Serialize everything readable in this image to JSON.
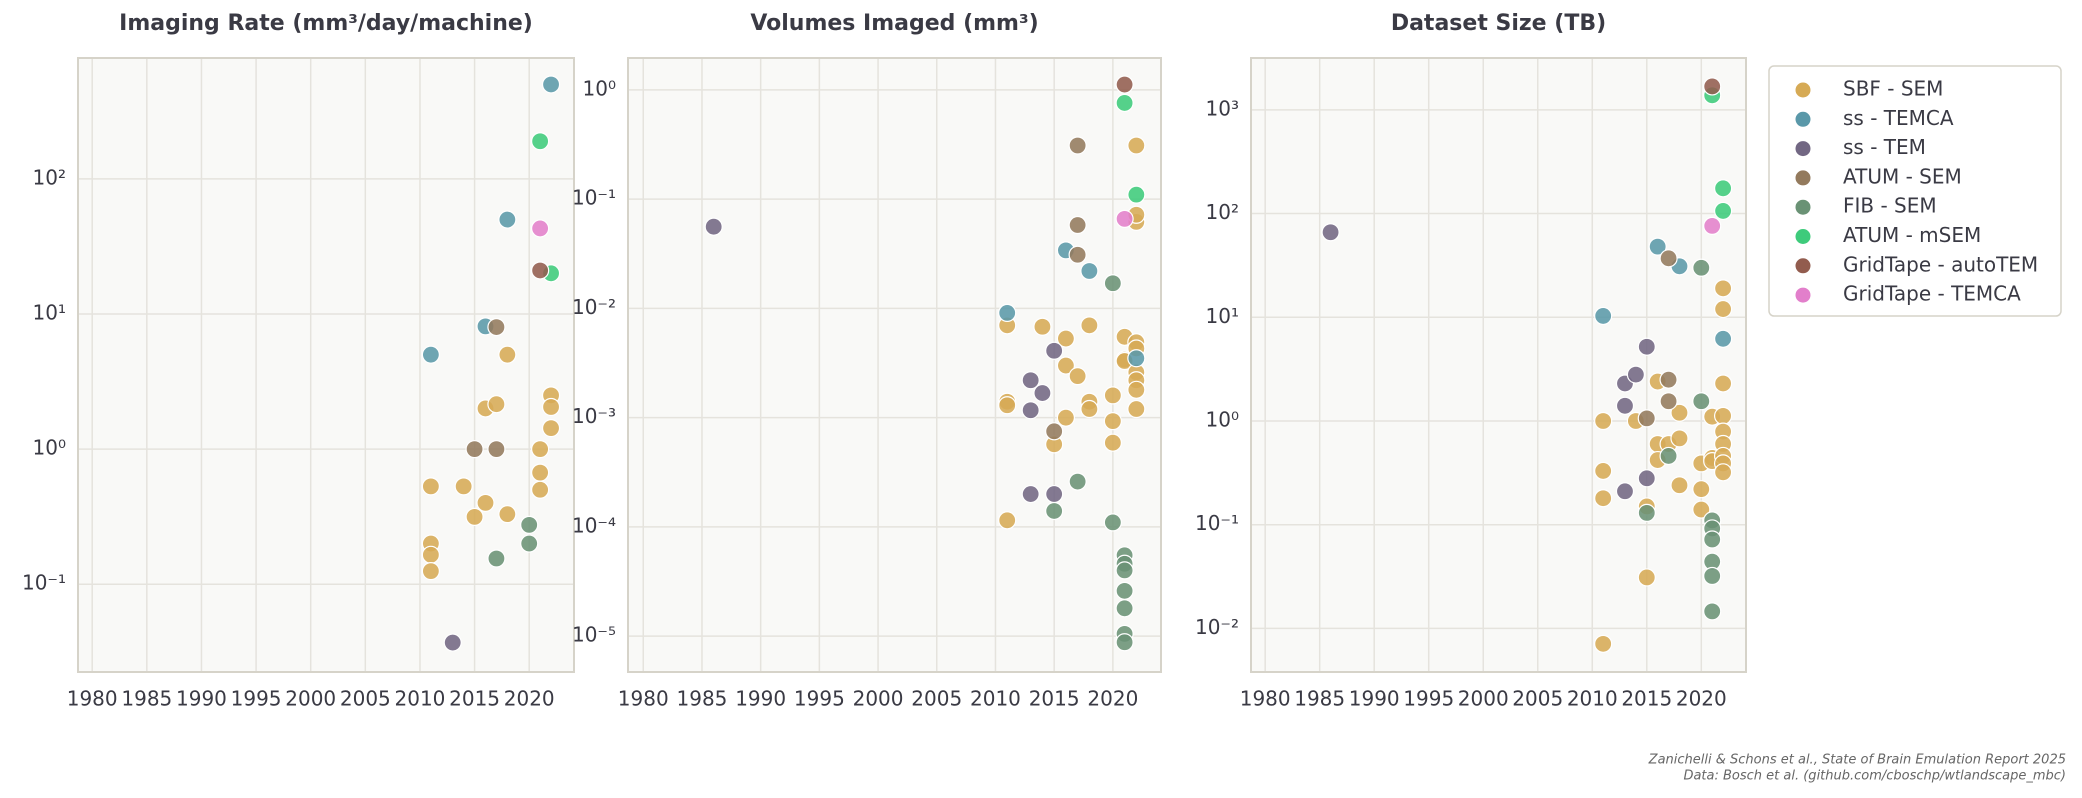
{
  "legend": {
    "series": [
      {
        "name": "SBF - SEM",
        "color": "#d6aa55"
      },
      {
        "name": "ss - TEMCA",
        "color": "#5a98a9"
      },
      {
        "name": "ss - TEM",
        "color": "#726783"
      },
      {
        "name": "ATUM - SEM",
        "color": "#937a5d"
      },
      {
        "name": "FIB - SEM",
        "color": "#6a9275"
      },
      {
        "name": "ATUM - mSEM",
        "color": "#3ecb7b"
      },
      {
        "name": "GridTape - autoTEM",
        "color": "#925c4e"
      },
      {
        "name": "GridTape - TEMCA",
        "color": "#e27fcb"
      }
    ]
  },
  "footer": [
    "Zanichelli & Schons et al., State of Brain Emulation Report 2025",
    "Data: Bosch et al. (github.com/cboschp/wtlandscape_mbc)"
  ],
  "chart_data": [
    {
      "type": "scatter",
      "title": "Imaging Rate (mm³/day/machine)",
      "log_y": true,
      "grid": true,
      "xlim": [
        1978.7,
        2024.1
      ],
      "xticks": [
        1980,
        1985,
        1990,
        1995,
        2000,
        2005,
        2010,
        2015,
        2020
      ],
      "ylim": [
        0.0224,
        785
      ],
      "yticks": [
        {
          "value": 0.1,
          "label": "10⁻¹"
        },
        {
          "value": 1,
          "label": "10⁰"
        },
        {
          "value": 10,
          "label": "10¹"
        },
        {
          "value": 100,
          "label": "10²"
        }
      ],
      "series": [
        {
          "x": [
            2011,
            2011,
            2011,
            2011,
            2014,
            2015,
            2016,
            2016,
            2017,
            2018,
            2018,
            2021,
            2021,
            2021,
            2022,
            2022,
            2022
          ],
          "values": [
            0.53,
            0.2,
            0.165,
            0.125,
            0.53,
            0.315,
            0.4,
            2.0,
            2.15,
            5,
            0.33,
            1.0,
            0.67,
            0.5,
            2.5,
            2.05,
            1.43
          ]
        },
        {
          "x": [
            2011,
            2016,
            2018,
            2022
          ],
          "values": [
            5,
            8.1,
            50,
            500
          ]
        },
        {
          "x": [
            2013
          ],
          "values": [
            0.037
          ]
        },
        {
          "x": [
            2015,
            2017,
            2017
          ],
          "values": [
            1,
            1,
            8
          ]
        },
        {
          "x": [
            2017,
            2020,
            2020
          ],
          "values": [
            0.155,
            0.275,
            0.2
          ]
        },
        {
          "x": [
            2021,
            2022
          ],
          "values": [
            190,
            20
          ]
        },
        {
          "x": [
            2021
          ],
          "values": [
            21
          ]
        },
        {
          "x": [
            2021
          ],
          "values": [
            43
          ]
        }
      ]
    },
    {
      "type": "scatter",
      "title": "Volumes Imaged (mm³)",
      "log_y": true,
      "grid": true,
      "xlim": [
        1978.7,
        2024.1
      ],
      "xticks": [
        1980,
        1985,
        1990,
        1995,
        2000,
        2005,
        2010,
        2015,
        2020
      ],
      "ylim": [
        4.7e-06,
        1.96
      ],
      "yticks": [
        {
          "value": 1e-05,
          "label": "10⁻⁵"
        },
        {
          "value": 0.0001,
          "label": "10⁻⁴"
        },
        {
          "value": 0.001,
          "label": "10⁻³"
        },
        {
          "value": 0.01,
          "label": "10⁻²"
        },
        {
          "value": 0.1,
          "label": "10⁻¹"
        },
        {
          "value": 1,
          "label": "10⁰"
        }
      ],
      "series": [
        {
          "x": [
            2011,
            2011,
            2011,
            2011,
            2014,
            2015,
            2016,
            2016,
            2016,
            2017,
            2018,
            2018,
            2018,
            2020,
            2020,
            2020,
            2021,
            2021,
            2021,
            2022,
            2022,
            2022,
            2022,
            2022,
            2022,
            2022,
            2022,
            2022
          ],
          "values": [
            0.007,
            0.0014,
            0.0013,
            0.000115,
            0.0068,
            0.00057,
            0.0053,
            0.003,
            0.001,
            0.0024,
            0.007,
            0.0014,
            0.0012,
            0.0016,
            0.00093,
            0.00059,
            0.0055,
            0.0034,
            0.0033,
            0.31,
            0.062,
            0.072,
            0.0049,
            0.0043,
            0.0026,
            0.0022,
            0.0018,
            0.0012
          ]
        },
        {
          "x": [
            2011,
            2016,
            2018,
            2022
          ],
          "values": [
            0.0091,
            0.034,
            0.022,
            0.0035
          ]
        },
        {
          "x": [
            1986,
            2013,
            2014,
            2015,
            2013,
            2013,
            2015
          ],
          "values": [
            0.056,
            0.0022,
            0.00168,
            0.0041,
            0.00117,
            0.0002,
            0.0002
          ]
        },
        {
          "x": [
            2017,
            2017,
            2017,
            2015
          ],
          "values": [
            0.31,
            0.058,
            0.031,
            0.00075
          ]
        },
        {
          "x": [
            2020,
            2017,
            2015,
            2020,
            2021,
            2021,
            2021,
            2021,
            2021,
            2021,
            2021
          ],
          "values": [
            0.017,
            0.00026,
            0.00014,
            0.00011,
            5.5e-05,
            4.6e-05,
            4e-05,
            2.6e-05,
            1.8e-05,
            1.05e-05,
            8.8e-06
          ]
        },
        {
          "x": [
            2021,
            2022
          ],
          "values": [
            0.76,
            0.11
          ]
        },
        {
          "x": [
            2021
          ],
          "values": [
            1.12
          ]
        },
        {
          "x": [
            2021
          ],
          "values": [
            0.066
          ]
        }
      ]
    },
    {
      "type": "scatter",
      "title": "Dataset Size (TB)",
      "log_y": true,
      "grid": true,
      "xlim": [
        1978.7,
        2024.1
      ],
      "xticks": [
        1980,
        1985,
        1990,
        1995,
        2000,
        2005,
        2010,
        2015,
        2020
      ],
      "ylim": [
        0.0038,
        3160
      ],
      "yticks": [
        {
          "value": 0.01,
          "label": "10⁻²"
        },
        {
          "value": 0.1,
          "label": "10⁻¹"
        },
        {
          "value": 1,
          "label": "10⁰"
        },
        {
          "value": 10,
          "label": "10¹"
        },
        {
          "value": 100,
          "label": "10²"
        },
        {
          "value": 1000,
          "label": "10³"
        }
      ],
      "series": [
        {
          "x": [
            2011,
            2011,
            2011,
            2011,
            2014,
            2015,
            2015,
            2016,
            2016,
            2016,
            2017,
            2018,
            2018,
            2018,
            2020,
            2020,
            2020,
            2021,
            2021,
            2021,
            2022,
            2022,
            2022,
            2022,
            2022,
            2022,
            2022,
            2022,
            2022
          ],
          "values": [
            1.0,
            0.33,
            0.18,
            0.0071,
            1.0,
            0.15,
            0.031,
            2.4,
            0.6,
            0.42,
            0.6,
            1.2,
            0.68,
            0.24,
            0.39,
            0.22,
            0.14,
            1.1,
            0.44,
            0.41,
            19,
            12,
            2.3,
            1.12,
            0.79,
            0.6,
            0.46,
            0.39,
            0.32
          ]
        },
        {
          "x": [
            2011,
            2016,
            2018,
            2022
          ],
          "values": [
            10.3,
            48,
            31,
            6.2
          ]
        },
        {
          "x": [
            1986,
            2015,
            2013,
            2014,
            2013,
            2013,
            2015
          ],
          "values": [
            66,
            5.2,
            2.3,
            2.8,
            1.4,
            0.21,
            0.28
          ]
        },
        {
          "x": [
            2017,
            2015,
            2017,
            2017
          ],
          "values": [
            37,
            1.06,
            2.5,
            1.55
          ]
        },
        {
          "x": [
            2020,
            2020,
            2017,
            2015,
            2021,
            2021,
            2021,
            2021,
            2021,
            2021
          ],
          "values": [
            30,
            1.55,
            0.46,
            0.13,
            0.11,
            0.092,
            0.072,
            0.044,
            0.032,
            0.0146
          ]
        },
        {
          "x": [
            2021,
            2022,
            2022
          ],
          "values": [
            1380,
            175,
            106
          ]
        },
        {
          "x": [
            2021
          ],
          "values": [
            1680
          ]
        },
        {
          "x": [
            2021
          ],
          "values": [
            76
          ]
        }
      ]
    }
  ]
}
